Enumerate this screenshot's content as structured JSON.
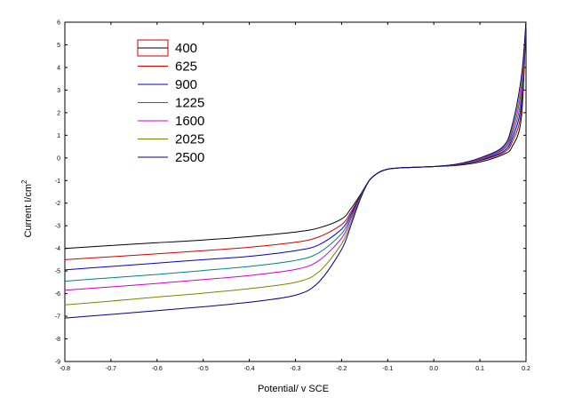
{
  "chart_data": {
    "type": "line",
    "title": "",
    "xlabel": "Potential/ v   SCE",
    "ylabel": "Current  I/cm",
    "ylabel_sup": "2",
    "xlim": [
      -0.8,
      0.2
    ],
    "ylim": [
      -9,
      6
    ],
    "xticks": [
      "-0.8",
      "-0.7",
      "-0.6",
      "-0.5",
      "-0.4",
      "-0.3",
      "-0.2",
      "-0.1",
      "0.0",
      "0.1",
      "0.2"
    ],
    "yticks": [
      "6",
      "5",
      "4",
      "3",
      "2",
      "1",
      "0",
      "-1",
      "-2",
      "-3",
      "-4",
      "-5",
      "-6",
      "-7",
      "-8",
      "-9"
    ],
    "grid": false,
    "legend": {
      "placement": "top-left",
      "boxed_first_entry": true
    },
    "x": [
      -0.8,
      -0.7,
      -0.6,
      -0.5,
      -0.4,
      -0.3,
      -0.25,
      -0.2,
      -0.18,
      -0.16,
      -0.14,
      -0.12,
      -0.1,
      -0.08,
      -0.05,
      0.0,
      0.05,
      0.1,
      0.15,
      0.17,
      0.19,
      0.2
    ],
    "series": [
      {
        "name": "400",
        "color": "#000000",
        "values": [
          -4.0,
          -3.87,
          -3.75,
          -3.63,
          -3.48,
          -3.28,
          -3.1,
          -2.7,
          -2.25,
          -1.65,
          -1.0,
          -0.65,
          -0.5,
          -0.45,
          -0.42,
          -0.38,
          -0.33,
          -0.18,
          0.15,
          0.5,
          1.8,
          6.0
        ]
      },
      {
        "name": "625",
        "color": "#cc0000",
        "values": [
          -4.5,
          -4.37,
          -4.24,
          -4.1,
          -3.95,
          -3.73,
          -3.5,
          -2.95,
          -2.4,
          -1.7,
          -1.0,
          -0.65,
          -0.5,
          -0.45,
          -0.42,
          -0.38,
          -0.31,
          -0.12,
          0.22,
          0.7,
          2.1,
          6.0
        ]
      },
      {
        "name": "900",
        "color": "#0000cc",
        "values": [
          -4.95,
          -4.8,
          -4.65,
          -4.5,
          -4.35,
          -4.1,
          -3.85,
          -3.15,
          -2.5,
          -1.72,
          -1.0,
          -0.65,
          -0.5,
          -0.45,
          -0.42,
          -0.38,
          -0.3,
          -0.1,
          0.28,
          0.85,
          2.4,
          6.0
        ]
      },
      {
        "name": "1225",
        "color": "#008080",
        "values": [
          -5.45,
          -5.3,
          -5.15,
          -4.98,
          -4.8,
          -4.53,
          -4.2,
          -3.35,
          -2.6,
          -1.75,
          -1.0,
          -0.65,
          -0.5,
          -0.45,
          -0.42,
          -0.38,
          -0.3,
          -0.08,
          0.35,
          1.0,
          2.7,
          6.0
        ]
      },
      {
        "name": "1600",
        "color": "#cc00cc",
        "values": [
          -5.85,
          -5.7,
          -5.55,
          -5.38,
          -5.2,
          -4.93,
          -4.55,
          -3.55,
          -2.7,
          -1.78,
          -1.0,
          -0.65,
          -0.5,
          -0.45,
          -0.42,
          -0.38,
          -0.29,
          -0.05,
          0.4,
          1.15,
          3.0,
          6.0
        ]
      },
      {
        "name": "2025",
        "color": "#808000",
        "values": [
          -6.5,
          -6.33,
          -6.15,
          -5.98,
          -5.78,
          -5.5,
          -5.05,
          -3.8,
          -2.85,
          -1.8,
          -1.0,
          -0.65,
          -0.5,
          -0.45,
          -0.42,
          -0.38,
          -0.28,
          -0.02,
          0.45,
          1.3,
          3.3,
          6.0
        ]
      },
      {
        "name": "2500",
        "color": "#000080",
        "values": [
          -7.08,
          -6.92,
          -6.75,
          -6.58,
          -6.38,
          -6.07,
          -5.5,
          -4.05,
          -3.0,
          -1.85,
          -1.0,
          -0.65,
          -0.5,
          -0.45,
          -0.42,
          -0.38,
          -0.27,
          0.0,
          0.5,
          1.45,
          3.6,
          6.0
        ]
      }
    ]
  }
}
